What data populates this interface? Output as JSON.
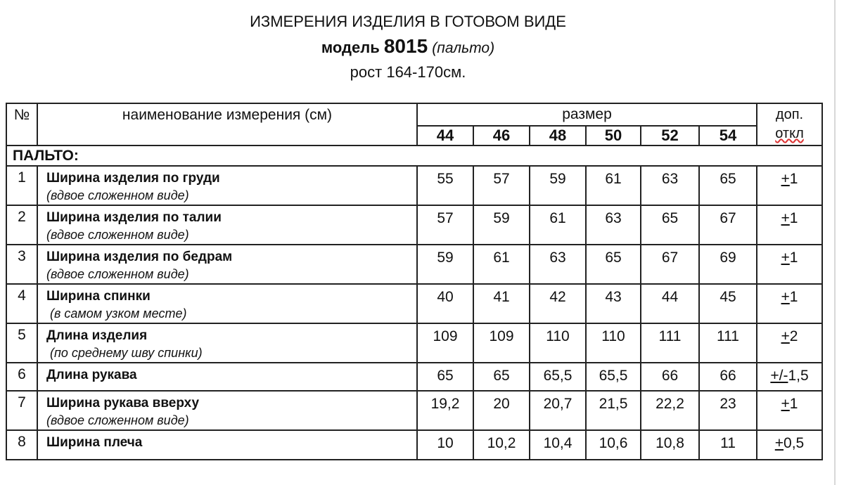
{
  "title": "ИЗМЕРЕНИЯ ИЗДЕЛИЯ В ГОТОВОМ ВИДЕ",
  "model_label": "модель",
  "model_number": "8015",
  "model_type": "(пальто)",
  "height": "рост 164-170см.",
  "table": {
    "col_no": "№",
    "col_name": "наименование измерения (см)",
    "col_size": "размер",
    "col_tol_1": "доп.",
    "col_tol_2": "откл",
    "sizes": [
      "44",
      "46",
      "48",
      "50",
      "52",
      "54"
    ],
    "section": "ПАЛЬТО:",
    "rows": [
      {
        "no": "1",
        "name": "Ширина изделия по груди",
        "note": "(вдвое сложенном виде)",
        "values": [
          "55",
          "57",
          "59",
          "61",
          "63",
          "65"
        ],
        "tol_sign": "+",
        "tol": "1"
      },
      {
        "no": "2",
        "name": "Ширина изделия по талии",
        "note": "(вдвое сложенном виде)",
        "values": [
          "57",
          "59",
          "61",
          "63",
          "65",
          "67"
        ],
        "tol_sign": "+",
        "tol": "1"
      },
      {
        "no": "3",
        "name": "Ширина изделия по бедрам",
        "note": "(вдвое сложенном виде)",
        "values": [
          "59",
          "61",
          "63",
          "65",
          "67",
          "69"
        ],
        "tol_sign": "+",
        "tol": "1"
      },
      {
        "no": "4",
        "name": "Ширина спинки",
        "note": " (в самом узком месте)",
        "values": [
          "40",
          "41",
          "42",
          "43",
          "44",
          "45"
        ],
        "tol_sign": "+",
        "tol": "1"
      },
      {
        "no": "5",
        "name": "Длина изделия",
        "note": " (по среднему шву спинки)",
        "values": [
          "109",
          "109",
          "110",
          "110",
          "111",
          "111"
        ],
        "tol_sign": "+",
        "tol": "2"
      },
      {
        "no": "6",
        "name": "Длина рукава",
        "note": "",
        "values": [
          "65",
          "65",
          "65,5",
          "65,5",
          "66",
          "66"
        ],
        "tol_sign": "+/-",
        "tol": "1,5"
      },
      {
        "no": "7",
        "name": "Ширина рукава вверху",
        "note": "(вдвое сложенном виде)",
        "values": [
          "19,2",
          "20",
          "20,7",
          "21,5",
          "22,2",
          "23"
        ],
        "tol_sign": "+",
        "tol": "1"
      },
      {
        "no": "8",
        "name": "Ширина плеча",
        "note": "",
        "values": [
          "10",
          "10,2",
          "10,4",
          "10,6",
          "10,8",
          "11"
        ],
        "tol_sign": "+",
        "tol": "0,5"
      }
    ]
  }
}
